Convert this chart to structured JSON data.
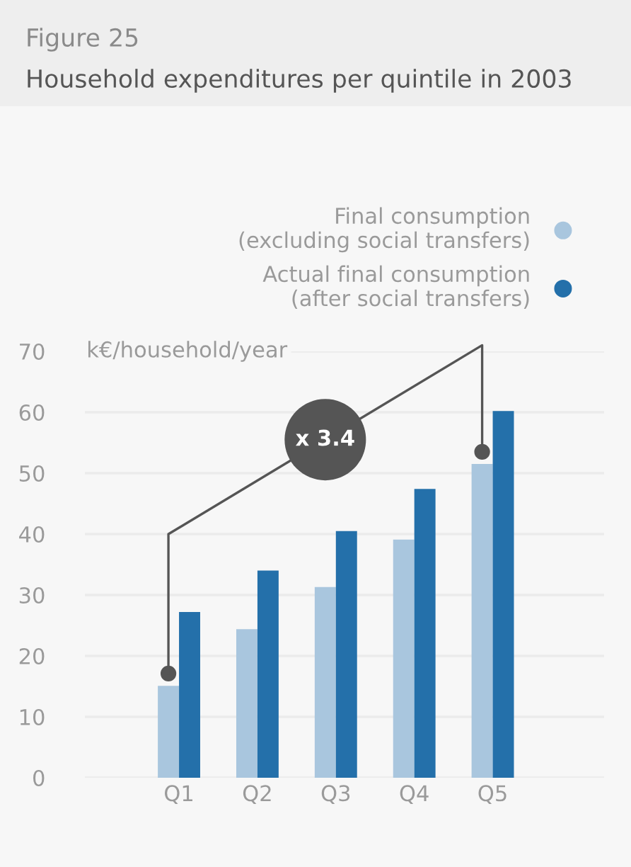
{
  "chart_data": {
    "type": "bar",
    "title": "Figure 25",
    "subtitle": "Household expenditures per quintile in 2003",
    "ylabel": "k€/household/year",
    "categories": [
      "Q1",
      "Q2",
      "Q3",
      "Q4",
      "Q5"
    ],
    "series": [
      {
        "name": "Final consumption\n(excluding social transfers)",
        "color": "#a9c6de",
        "values": [
          15.1,
          24.4,
          31.3,
          39.1,
          51.5
        ]
      },
      {
        "name": "Actual final consumption\n(after social transfers)",
        "color": "#2470aa",
        "values": [
          27.2,
          34.0,
          40.5,
          47.4,
          60.2
        ]
      }
    ],
    "ylim": [
      0,
      70
    ],
    "yticks": [
      0,
      10,
      20,
      30,
      40,
      50,
      60,
      70
    ],
    "grid": "y",
    "legend": "top right",
    "annotations": [
      "x 3.4"
    ]
  }
}
